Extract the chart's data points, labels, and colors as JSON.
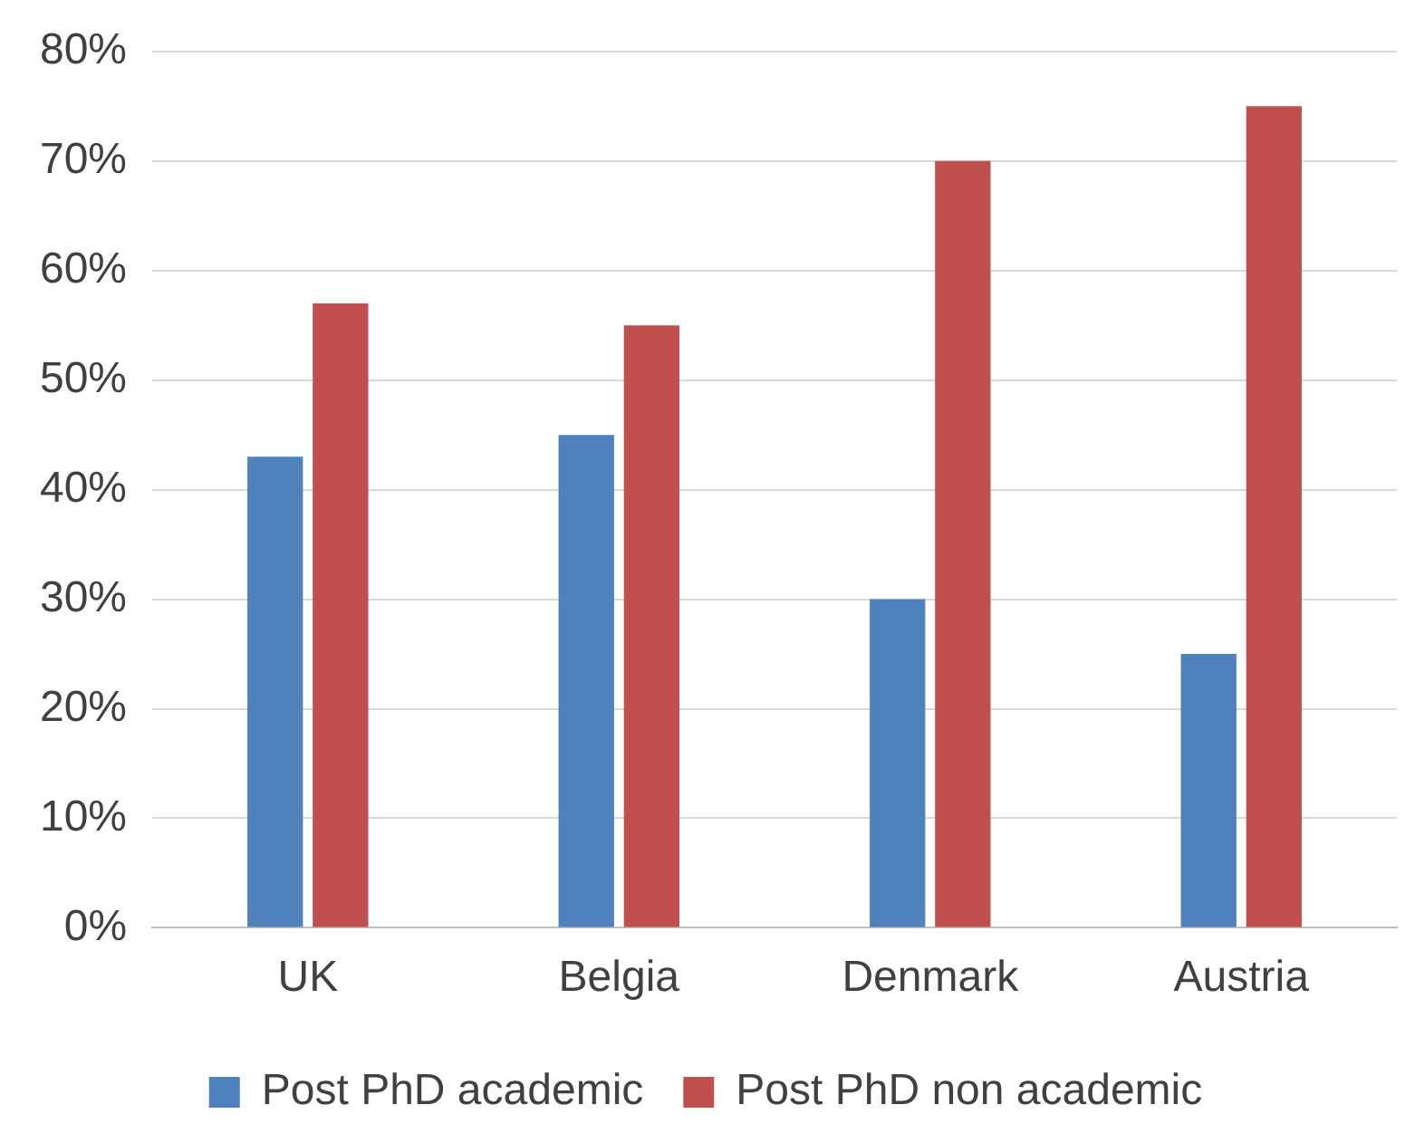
{
  "chart_data": {
    "type": "bar",
    "categories": [
      "UK",
      "Belgia",
      "Denmark",
      "Austria"
    ],
    "series": [
      {
        "name": "Post PhD academic",
        "color": "#4f81bd",
        "values": [
          43,
          45,
          30,
          25
        ]
      },
      {
        "name": "Post PhD non academic",
        "color": "#c0504d",
        "values": [
          57,
          55,
          70,
          75
        ]
      }
    ],
    "ylim": [
      0,
      80
    ],
    "yticks": [
      {
        "value": 0,
        "label": "0%"
      },
      {
        "value": 10,
        "label": "10%"
      },
      {
        "value": 20,
        "label": "20%"
      },
      {
        "value": 30,
        "label": "30%"
      },
      {
        "value": 40,
        "label": "40%"
      },
      {
        "value": 50,
        "label": "50%"
      },
      {
        "value": 60,
        "label": "60%"
      },
      {
        "value": 70,
        "label": "70%"
      },
      {
        "value": 80,
        "label": "80%"
      }
    ],
    "grid": "y",
    "legend": "bottom"
  }
}
